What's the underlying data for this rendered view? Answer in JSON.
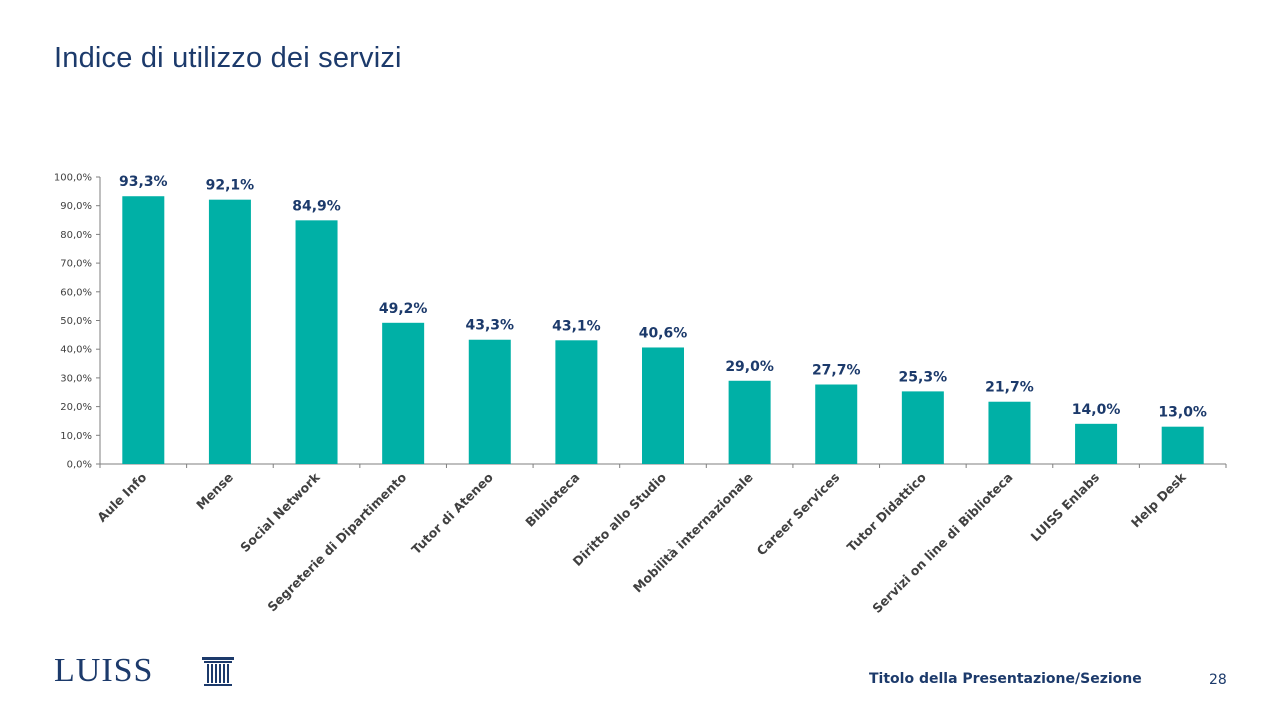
{
  "slide": {
    "title": "Indice di utilizzo dei servizi",
    "logo_text": "LUISS",
    "footer_title": "Titolo della Presentazione/Sezione",
    "page_number": "28"
  },
  "colors": {
    "bar": "#00b0a6",
    "label": "#1c3a6b",
    "axis": "#7f7f7f"
  },
  "chart_data": {
    "type": "bar",
    "categories": [
      "Aule Info",
      "Mense",
      "Social Network",
      "Segreterie di Dipartimento",
      "Tutor di Ateneo",
      "Biblioteca",
      "Diritto allo Studio",
      "Mobilità internazionale",
      "Career Services",
      "Tutor Didattico",
      "Servizi on line di Biblioteca",
      "LUISS Enlabs",
      "Help Desk"
    ],
    "values": [
      93.3,
      92.1,
      84.9,
      49.2,
      43.3,
      43.1,
      40.6,
      29.0,
      27.7,
      25.3,
      21.7,
      14.0,
      13.0
    ],
    "value_labels": [
      "93,3%",
      "92,1%",
      "84,9%",
      "49,2%",
      "43,3%",
      "43,1%",
      "40,6%",
      "29,0%",
      "27,7%",
      "25,3%",
      "21,7%",
      "14,0%",
      "13,0%"
    ],
    "ylim": [
      0,
      100
    ],
    "yticks": [
      "0,0%",
      "10,0%",
      "20,0%",
      "30,0%",
      "40,0%",
      "50,0%",
      "60,0%",
      "70,0%",
      "80,0%",
      "90,0%",
      "100,0%"
    ],
    "title": "",
    "xlabel": "",
    "ylabel": "",
    "grid": false,
    "legend": "none"
  }
}
